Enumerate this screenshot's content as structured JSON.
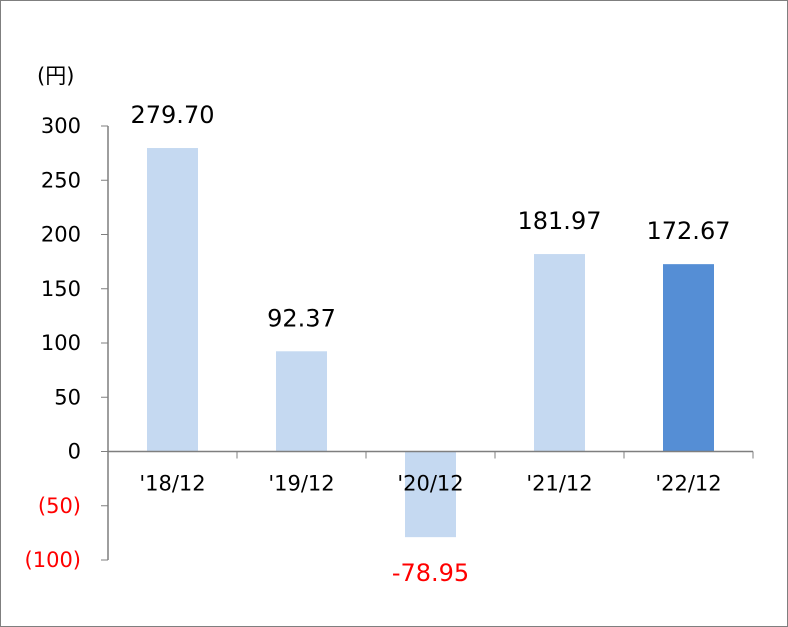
{
  "chart_data": {
    "type": "bar",
    "unit_label": "(円)",
    "categories": [
      "'18/12",
      "'19/12",
      "'20/12",
      "'21/12",
      "'22/12"
    ],
    "values": [
      279.7,
      92.37,
      -78.95,
      181.97,
      172.67
    ],
    "value_labels": [
      "279.70",
      "92.37",
      "-78.95",
      "181.97",
      "172.67"
    ],
    "y_ticks": [
      {
        "value": 300,
        "label": "300"
      },
      {
        "value": 250,
        "label": "250"
      },
      {
        "value": 200,
        "label": "200"
      },
      {
        "value": 150,
        "label": "150"
      },
      {
        "value": 100,
        "label": "100"
      },
      {
        "value": 50,
        "label": "50"
      },
      {
        "value": 0,
        "label": "0"
      },
      {
        "value": -50,
        "label": "(50)"
      },
      {
        "value": -100,
        "label": "(100)"
      }
    ],
    "ylim": [
      -100,
      300
    ],
    "grid": false,
    "colors": {
      "bar_normal": "#c5d9f1",
      "bar_highlight": "#558ed5",
      "negative_text": "#ff0000",
      "text": "#000000",
      "axis": "#7f7f7f"
    },
    "highlight_index": 4
  }
}
